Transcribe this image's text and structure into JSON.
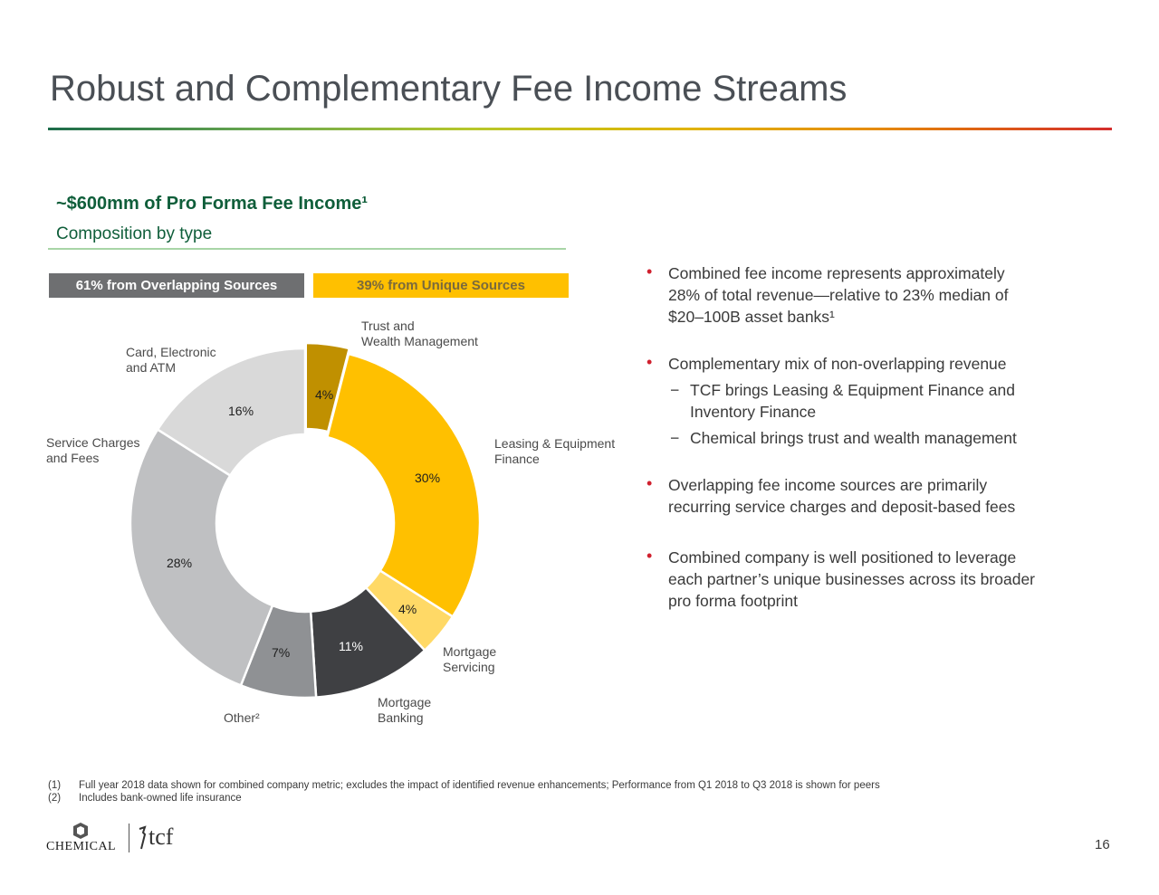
{
  "slide": {
    "title": "Robust and Complementary Fee Income Streams",
    "subhead": "~$600mm of Pro Forma Fee Income¹",
    "subhead2": "Composition by type",
    "band_overlap": "61% from Overlapping Sources",
    "band_unique": "39% from Unique Sources",
    "page_number": "16"
  },
  "chart_data": {
    "type": "pie",
    "hole": true,
    "title": "",
    "slices": [
      {
        "label": "Trust and Wealth Management",
        "label_lines": [
          "Trust and",
          "Wealth Management"
        ],
        "value": 4,
        "value_label": "4%",
        "color": "#c09000"
      },
      {
        "label": "Leasing & Equipment Finance",
        "label_lines": [
          "Leasing & Equipment",
          "Finance"
        ],
        "value": 30,
        "value_label": "30%",
        "color": "#ffc000"
      },
      {
        "label": "Mortgage Servicing",
        "label_lines": [
          "Mortgage",
          "Servicing"
        ],
        "value": 4,
        "value_label": "4%",
        "color": "#ffd966"
      },
      {
        "label": "Mortgage Banking",
        "label_lines": [
          "Mortgage",
          "Banking"
        ],
        "value": 11,
        "value_label": "11%",
        "color": "#3f4043"
      },
      {
        "label": "Other²",
        "label_lines": [
          "Other²"
        ],
        "value": 7,
        "value_label": "7%",
        "color": "#8f9194"
      },
      {
        "label": "Service Charges and Fees",
        "label_lines": [
          "Service Charges",
          "and Fees"
        ],
        "value": 28,
        "value_label": "28%",
        "color": "#bfc0c2"
      },
      {
        "label": "Card, Electronic and ATM",
        "label_lines": [
          "Card, Electronic",
          "and ATM"
        ],
        "value": 16,
        "value_label": "16%",
        "color": "#d9d9d9"
      }
    ]
  },
  "bullets": [
    {
      "text": "Combined fee income represents approximately 28% of total revenue—relative to 23% median of $20–100B asset banks¹",
      "subs": []
    },
    {
      "text": "Complementary mix of non-overlapping revenue",
      "subs": [
        "TCF brings Leasing & Equipment Finance and Inventory Finance",
        "Chemical brings trust and wealth management"
      ]
    },
    {
      "text": "Overlapping fee income sources are primarily recurring service charges and deposit-based fees",
      "subs": []
    },
    {
      "text": "Combined company is well positioned to leverage each partner’s unique businesses across its broader pro forma footprint",
      "subs": []
    }
  ],
  "bullet_marker": "•",
  "sub_marker": "−",
  "footnotes": [
    {
      "num": "(1)",
      "text": "Full year 2018 data shown for combined company metric; excludes the impact of identified revenue enhancements; Performance from Q1 2018 to Q3 2018 is shown for peers"
    },
    {
      "num": "(2)",
      "text": "Includes bank-owned life insurance"
    }
  ],
  "logos": {
    "chemical": "CHEMICAL",
    "tcf": "tcf"
  },
  "colors": {
    "title": "#4a4f55",
    "subhead": "#0f5e3a",
    "bullet": "#d0202e"
  }
}
